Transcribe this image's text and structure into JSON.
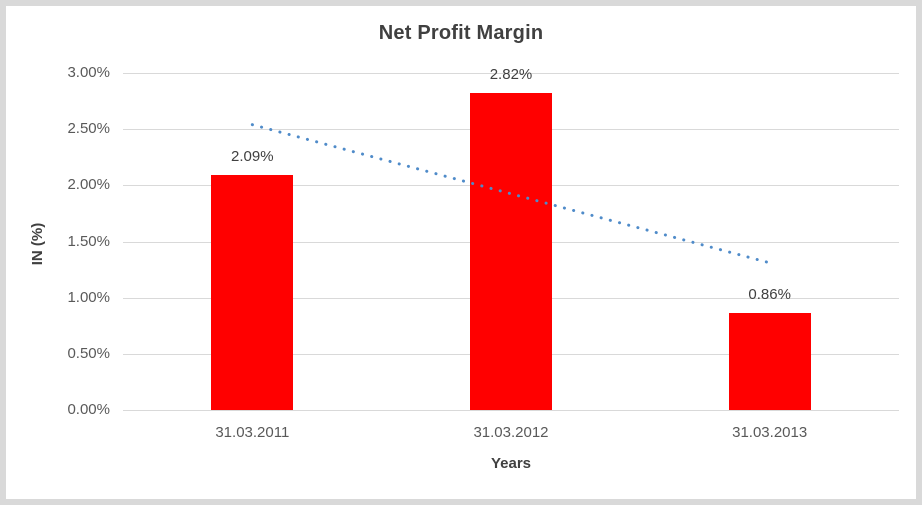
{
  "chart_data": {
    "type": "bar",
    "title": "Net Profit Margin",
    "categories": [
      "31.03.2011",
      "31.03.2012",
      "31.03.2013"
    ],
    "values": [
      2.09,
      2.82,
      0.86
    ],
    "data_labels": [
      "2.09%",
      "2.82%",
      "0.86%"
    ],
    "xlabel": "Years",
    "ylabel": "IN (%)",
    "ylim": [
      0,
      3
    ],
    "ytick_step": 0.5,
    "ytick_labels": [
      "0.00%",
      "0.50%",
      "1.00%",
      "1.50%",
      "2.00%",
      "2.50%",
      "3.00%"
    ],
    "grid": true,
    "legend": "none",
    "trendline": {
      "type": "linear",
      "style": "dotted",
      "start_value": 2.54,
      "end_value": 1.31
    },
    "colors": {
      "bar": "#FF0000",
      "trendline": "#4F8BC9",
      "gridline": "#D9D9D9",
      "frame": "#D9D9D9",
      "background": "#FFFFFF",
      "title_text": "#404040",
      "tick_text": "#595959",
      "label_text": "#404040"
    }
  }
}
